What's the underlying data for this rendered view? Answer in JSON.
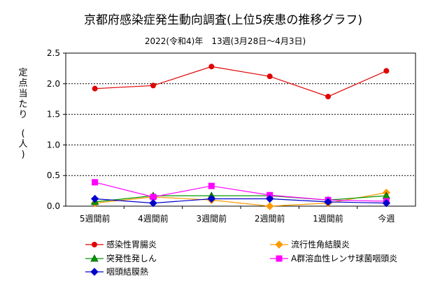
{
  "chart_data": {
    "type": "line",
    "title": "京都府感染症発生動向調査(上位5疾患の推移グラフ)",
    "subtitle": "2022(令和4)年　13週(3月28日～4月3日)",
    "ylabel": "定点当たり　(人)",
    "xlabel": "",
    "ylim": [
      0,
      2.5
    ],
    "yticks": [
      "0.0",
      "0.5",
      "1.0",
      "1.5",
      "2.0",
      "2.5"
    ],
    "grid": true,
    "legend_position": "bottom",
    "categories": [
      "5週間前",
      "4週間前",
      "3週間前",
      "2週間前",
      "1週間前",
      "今週"
    ],
    "series": [
      {
        "name": "感染性胃腸炎",
        "values": [
          1.92,
          1.97,
          2.28,
          2.12,
          1.79,
          2.21
        ],
        "color": "#e00000",
        "marker": "circle"
      },
      {
        "name": "流行性角結膜炎",
        "values": [
          0.05,
          0.15,
          0.1,
          0.0,
          0.05,
          0.22
        ],
        "color": "#ff9900",
        "marker": "diamond"
      },
      {
        "name": "突発性発しん",
        "values": [
          0.07,
          0.17,
          0.17,
          0.17,
          0.1,
          0.17
        ],
        "color": "#009900",
        "marker": "triangle"
      },
      {
        "name": "A群溶血性レンサ球菌咽頭炎",
        "values": [
          0.39,
          0.15,
          0.33,
          0.18,
          0.1,
          0.08
        ],
        "color": "#ff00ff",
        "marker": "square"
      },
      {
        "name": "咽頭結膜熱",
        "values": [
          0.12,
          0.05,
          0.12,
          0.12,
          0.07,
          0.05
        ],
        "color": "#0000cc",
        "marker": "diamond"
      }
    ]
  }
}
